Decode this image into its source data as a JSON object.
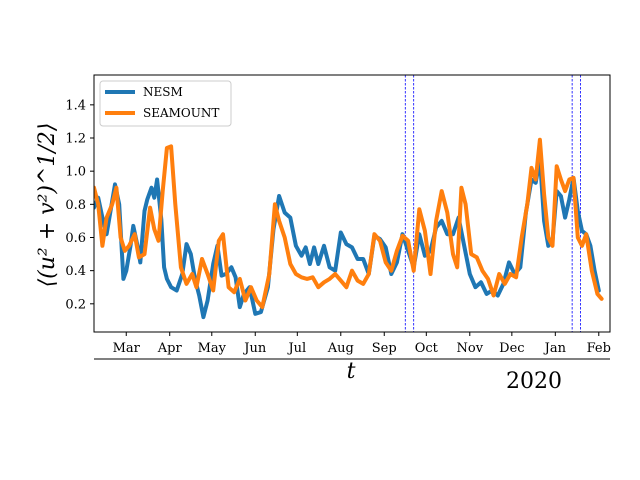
{
  "chart_data": {
    "type": "line",
    "title": "",
    "xlabel": "t",
    "ylabel": "⟨(u² + v²)^1/2⟩",
    "year_label": "2020",
    "x_start": "2019-02-20",
    "x_end": "2020-02-23",
    "ylim": [
      0.03,
      1.58
    ],
    "yticks": [
      0.2,
      0.4,
      0.6,
      0.8,
      1.0,
      1.2,
      1.4
    ],
    "ytick_labels": [
      "0.2",
      "0.4",
      "0.6",
      "0.8",
      "1.0",
      "1.2",
      "1.4"
    ],
    "xticks": [
      {
        "label": "Mar",
        "date": "2019-03-15"
      },
      {
        "label": "Apr",
        "date": "2019-04-15"
      },
      {
        "label": "May",
        "date": "2019-05-15"
      },
      {
        "label": "Jun",
        "date": "2019-06-15"
      },
      {
        "label": "Jul",
        "date": "2019-07-15"
      },
      {
        "label": "Aug",
        "date": "2019-08-15"
      },
      {
        "label": "Sep",
        "date": "2019-09-15"
      },
      {
        "label": "Oct",
        "date": "2019-10-15"
      },
      {
        "label": "Nov",
        "date": "2019-11-15"
      },
      {
        "label": "Dec",
        "date": "2019-12-15"
      },
      {
        "label": "Jan",
        "date": "2020-01-15"
      },
      {
        "label": "Feb",
        "date": "2020-02-15"
      }
    ],
    "vlines": [
      "2019-09-30",
      "2019-10-06",
      "2020-01-27",
      "2020-02-02"
    ],
    "grid": false,
    "legend_position": "top-left",
    "series": [
      {
        "name": "NESM",
        "color": "#1f77b4",
        "points": [
          [
            "2019-02-20",
            0.78
          ],
          [
            "2019-02-23",
            0.84
          ],
          [
            "2019-02-26",
            0.72
          ],
          [
            "2019-03-01",
            0.62
          ],
          [
            "2019-03-05",
            0.82
          ],
          [
            "2019-03-07",
            0.92
          ],
          [
            "2019-03-10",
            0.8
          ],
          [
            "2019-03-13",
            0.35
          ],
          [
            "2019-03-15",
            0.4
          ],
          [
            "2019-03-18",
            0.55
          ],
          [
            "2019-03-20",
            0.67
          ],
          [
            "2019-03-23",
            0.55
          ],
          [
            "2019-03-25",
            0.45
          ],
          [
            "2019-03-28",
            0.76
          ],
          [
            "2019-03-30",
            0.83
          ],
          [
            "2019-04-02",
            0.9
          ],
          [
            "2019-04-04",
            0.84
          ],
          [
            "2019-04-06",
            0.95
          ],
          [
            "2019-04-09",
            0.71
          ],
          [
            "2019-04-11",
            0.42
          ],
          [
            "2019-04-13",
            0.35
          ],
          [
            "2019-04-16",
            0.3
          ],
          [
            "2019-04-20",
            0.28
          ],
          [
            "2019-04-24",
            0.38
          ],
          [
            "2019-04-27",
            0.56
          ],
          [
            "2019-04-30",
            0.5
          ],
          [
            "2019-05-03",
            0.35
          ],
          [
            "2019-05-06",
            0.25
          ],
          [
            "2019-05-09",
            0.12
          ],
          [
            "2019-05-12",
            0.22
          ],
          [
            "2019-05-16",
            0.44
          ],
          [
            "2019-05-19",
            0.55
          ],
          [
            "2019-05-22",
            0.37
          ],
          [
            "2019-05-25",
            0.38
          ],
          [
            "2019-05-29",
            0.42
          ],
          [
            "2019-06-01",
            0.36
          ],
          [
            "2019-06-04",
            0.18
          ],
          [
            "2019-06-07",
            0.26
          ],
          [
            "2019-06-11",
            0.3
          ],
          [
            "2019-06-15",
            0.14
          ],
          [
            "2019-06-19",
            0.15
          ],
          [
            "2019-06-24",
            0.3
          ],
          [
            "2019-06-28",
            0.65
          ],
          [
            "2019-07-02",
            0.85
          ],
          [
            "2019-07-06",
            0.75
          ],
          [
            "2019-07-10",
            0.72
          ],
          [
            "2019-07-14",
            0.55
          ],
          [
            "2019-07-18",
            0.49
          ],
          [
            "2019-07-21",
            0.54
          ],
          [
            "2019-07-24",
            0.44
          ],
          [
            "2019-07-27",
            0.54
          ],
          [
            "2019-07-30",
            0.44
          ],
          [
            "2019-08-03",
            0.55
          ],
          [
            "2019-08-07",
            0.42
          ],
          [
            "2019-08-11",
            0.4
          ],
          [
            "2019-08-15",
            0.63
          ],
          [
            "2019-08-19",
            0.56
          ],
          [
            "2019-08-23",
            0.54
          ],
          [
            "2019-08-27",
            0.47
          ],
          [
            "2019-08-31",
            0.47
          ],
          [
            "2019-09-04",
            0.38
          ],
          [
            "2019-09-08",
            0.61
          ],
          [
            "2019-09-12",
            0.59
          ],
          [
            "2019-09-16",
            0.54
          ],
          [
            "2019-09-20",
            0.38
          ],
          [
            "2019-09-24",
            0.45
          ],
          [
            "2019-09-28",
            0.62
          ],
          [
            "2019-10-02",
            0.52
          ],
          [
            "2019-10-06",
            0.42
          ],
          [
            "2019-10-10",
            0.62
          ],
          [
            "2019-10-14",
            0.49
          ],
          [
            "2019-10-18",
            0.52
          ],
          [
            "2019-10-22",
            0.66
          ],
          [
            "2019-10-26",
            0.7
          ],
          [
            "2019-10-30",
            0.62
          ],
          [
            "2019-11-03",
            0.62
          ],
          [
            "2019-11-07",
            0.72
          ],
          [
            "2019-11-11",
            0.55
          ],
          [
            "2019-11-15",
            0.38
          ],
          [
            "2019-11-19",
            0.3
          ],
          [
            "2019-11-23",
            0.33
          ],
          [
            "2019-11-27",
            0.26
          ],
          [
            "2019-12-01",
            0.28
          ],
          [
            "2019-12-05",
            0.25
          ],
          [
            "2019-12-09",
            0.32
          ],
          [
            "2019-12-13",
            0.45
          ],
          [
            "2019-12-17",
            0.38
          ],
          [
            "2019-12-21",
            0.42
          ],
          [
            "2019-12-25",
            0.75
          ],
          [
            "2019-12-29",
            0.95
          ],
          [
            "2020-01-01",
            0.93
          ],
          [
            "2020-01-04",
            1.08
          ],
          [
            "2020-01-07",
            0.7
          ],
          [
            "2020-01-10",
            0.55
          ],
          [
            "2020-01-13",
            0.58
          ],
          [
            "2020-01-16",
            0.88
          ],
          [
            "2020-01-19",
            0.85
          ],
          [
            "2020-01-22",
            0.72
          ],
          [
            "2020-01-25",
            0.83
          ],
          [
            "2020-01-28",
            0.96
          ],
          [
            "2020-01-31",
            0.76
          ],
          [
            "2020-02-03",
            0.64
          ],
          [
            "2020-02-06",
            0.62
          ],
          [
            "2020-02-09",
            0.55
          ],
          [
            "2020-02-12",
            0.4
          ],
          [
            "2020-02-15",
            0.28
          ]
        ]
      },
      {
        "name": "SEAMOUNT",
        "color": "#ff7f0e",
        "points": [
          [
            "2019-02-20",
            0.9
          ],
          [
            "2019-02-23",
            0.8
          ],
          [
            "2019-02-26",
            0.55
          ],
          [
            "2019-03-01",
            0.72
          ],
          [
            "2019-03-05",
            0.8
          ],
          [
            "2019-03-08",
            0.9
          ],
          [
            "2019-03-11",
            0.6
          ],
          [
            "2019-03-14",
            0.52
          ],
          [
            "2019-03-17",
            0.55
          ],
          [
            "2019-03-21",
            0.62
          ],
          [
            "2019-03-24",
            0.48
          ],
          [
            "2019-03-28",
            0.5
          ],
          [
            "2019-04-01",
            0.78
          ],
          [
            "2019-04-04",
            0.65
          ],
          [
            "2019-04-07",
            0.58
          ],
          [
            "2019-04-10",
            0.88
          ],
          [
            "2019-04-13",
            1.14
          ],
          [
            "2019-04-16",
            1.15
          ],
          [
            "2019-04-19",
            0.8
          ],
          [
            "2019-04-23",
            0.42
          ],
          [
            "2019-04-27",
            0.32
          ],
          [
            "2019-05-01",
            0.38
          ],
          [
            "2019-05-04",
            0.3
          ],
          [
            "2019-05-08",
            0.47
          ],
          [
            "2019-05-12",
            0.38
          ],
          [
            "2019-05-16",
            0.28
          ],
          [
            "2019-05-20",
            0.58
          ],
          [
            "2019-05-23",
            0.62
          ],
          [
            "2019-05-27",
            0.3
          ],
          [
            "2019-05-31",
            0.27
          ],
          [
            "2019-06-04",
            0.35
          ],
          [
            "2019-06-08",
            0.22
          ],
          [
            "2019-06-12",
            0.3
          ],
          [
            "2019-06-16",
            0.22
          ],
          [
            "2019-06-20",
            0.18
          ],
          [
            "2019-06-25",
            0.38
          ],
          [
            "2019-06-29",
            0.8
          ],
          [
            "2019-07-02",
            0.7
          ],
          [
            "2019-07-06",
            0.6
          ],
          [
            "2019-07-10",
            0.44
          ],
          [
            "2019-07-14",
            0.38
          ],
          [
            "2019-07-18",
            0.36
          ],
          [
            "2019-07-22",
            0.35
          ],
          [
            "2019-07-26",
            0.36
          ],
          [
            "2019-07-30",
            0.3
          ],
          [
            "2019-08-03",
            0.33
          ],
          [
            "2019-08-07",
            0.35
          ],
          [
            "2019-08-11",
            0.38
          ],
          [
            "2019-08-15",
            0.34
          ],
          [
            "2019-08-19",
            0.3
          ],
          [
            "2019-08-23",
            0.4
          ],
          [
            "2019-08-27",
            0.34
          ],
          [
            "2019-08-31",
            0.32
          ],
          [
            "2019-09-04",
            0.38
          ],
          [
            "2019-09-08",
            0.62
          ],
          [
            "2019-09-12",
            0.58
          ],
          [
            "2019-09-16",
            0.45
          ],
          [
            "2019-09-20",
            0.4
          ],
          [
            "2019-09-24",
            0.52
          ],
          [
            "2019-09-28",
            0.61
          ],
          [
            "2019-10-02",
            0.58
          ],
          [
            "2019-10-06",
            0.4
          ],
          [
            "2019-10-10",
            0.77
          ],
          [
            "2019-10-14",
            0.64
          ],
          [
            "2019-10-18",
            0.38
          ],
          [
            "2019-10-22",
            0.7
          ],
          [
            "2019-10-26",
            0.88
          ],
          [
            "2019-10-30",
            0.75
          ],
          [
            "2019-11-03",
            0.5
          ],
          [
            "2019-11-06",
            0.42
          ],
          [
            "2019-11-09",
            0.9
          ],
          [
            "2019-11-12",
            0.8
          ],
          [
            "2019-11-16",
            0.5
          ],
          [
            "2019-11-20",
            0.48
          ],
          [
            "2019-11-24",
            0.4
          ],
          [
            "2019-11-28",
            0.35
          ],
          [
            "2019-12-02",
            0.25
          ],
          [
            "2019-12-06",
            0.38
          ],
          [
            "2019-12-10",
            0.32
          ],
          [
            "2019-12-14",
            0.38
          ],
          [
            "2019-12-18",
            0.36
          ],
          [
            "2019-12-22",
            0.6
          ],
          [
            "2019-12-26",
            0.8
          ],
          [
            "2019-12-29",
            1.02
          ],
          [
            "2020-01-01",
            0.95
          ],
          [
            "2020-01-04",
            1.19
          ],
          [
            "2020-01-07",
            0.86
          ],
          [
            "2020-01-10",
            0.6
          ],
          [
            "2020-01-13",
            0.55
          ],
          [
            "2020-01-16",
            1.03
          ],
          [
            "2020-01-19",
            0.95
          ],
          [
            "2020-01-22",
            0.88
          ],
          [
            "2020-01-25",
            0.95
          ],
          [
            "2020-01-28",
            0.96
          ],
          [
            "2020-01-31",
            0.6
          ],
          [
            "2020-02-03",
            0.55
          ],
          [
            "2020-02-06",
            0.62
          ],
          [
            "2020-02-10",
            0.4
          ],
          [
            "2020-02-14",
            0.26
          ],
          [
            "2020-02-17",
            0.23
          ]
        ]
      }
    ]
  }
}
